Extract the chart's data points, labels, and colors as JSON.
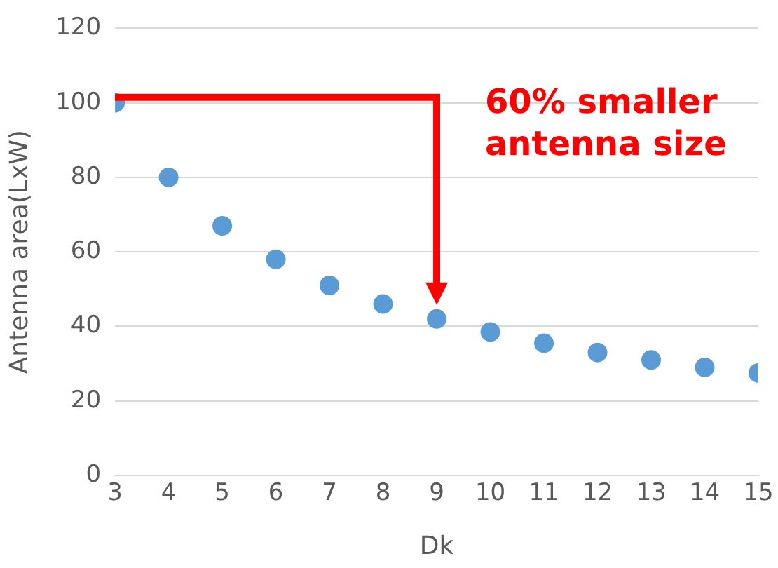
{
  "chart_data": {
    "type": "scatter",
    "xlabel": "Dk",
    "ylabel": "Antenna area(LxW)",
    "x": [
      3,
      4,
      5,
      6,
      7,
      8,
      9,
      10,
      11,
      12,
      13,
      14,
      15
    ],
    "series": [
      {
        "color": "#5b9bd5",
        "values": [
          100,
          80,
          67,
          58,
          51,
          46,
          42,
          38.5,
          35.5,
          33,
          31,
          29,
          27.5
        ]
      }
    ],
    "xlim": [
      3,
      15
    ],
    "xticks": [
      3,
      4,
      5,
      6,
      7,
      8,
      9,
      10,
      11,
      12,
      13,
      14,
      15
    ],
    "ylim": [
      0,
      120
    ],
    "yticks": [
      0,
      20,
      40,
      60,
      80,
      100,
      120
    ],
    "grid": "y",
    "legend": false,
    "marker": "circle",
    "annotations": [
      "60% smaller\nantenna size"
    ]
  }
}
